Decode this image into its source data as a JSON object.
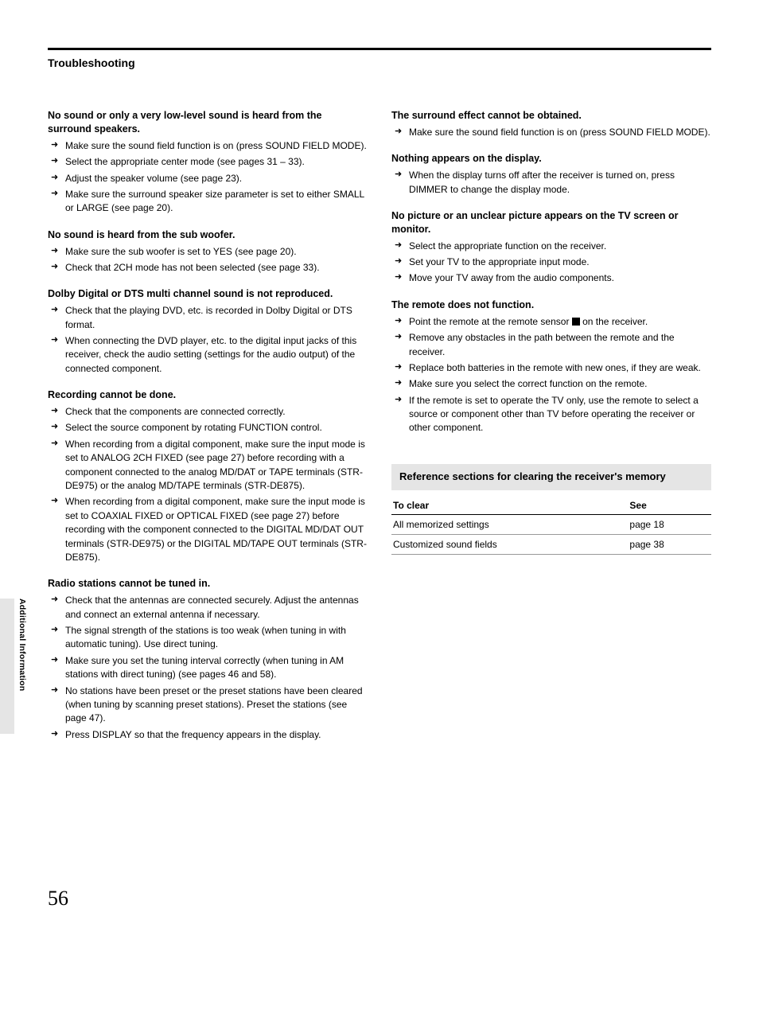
{
  "section_title": "Troubleshooting",
  "side_label": "Additional Information",
  "page_number": "56",
  "left": {
    "g1": {
      "head": "No sound or only a very low-level sound is heard from the surround speakers.",
      "items": [
        "Make sure the sound field function is on (press SOUND FIELD MODE).",
        "Select the appropriate center mode (see pages 31 – 33).",
        "Adjust the speaker volume (see page 23).",
        "Make sure the surround speaker size parameter is set to either SMALL or LARGE (see page 20)."
      ]
    },
    "g2": {
      "head": "No sound is heard from the sub woofer.",
      "items": [
        "Make sure the sub woofer is set to YES (see page 20).",
        "Check that 2CH mode has not been selected (see page 33)."
      ]
    },
    "g3": {
      "head": "Dolby Digital or DTS multi channel sound is not reproduced.",
      "items": [
        "Check that the playing DVD, etc. is recorded in Dolby Digital or DTS format.",
        "When connecting the DVD player, etc. to the digital input jacks of this receiver, check the audio setting (settings for the audio output) of the connected component."
      ]
    },
    "g4": {
      "head": "Recording cannot be done.",
      "items": [
        "Check that the components are connected correctly.",
        "Select the source component by rotating FUNCTION control.",
        "When recording from a digital component, make sure the input mode is set to ANALOG 2CH FIXED (see page 27) before recording with a component connected to the analog MD/DAT or TAPE terminals (STR-DE975) or the analog MD/TAPE terminals (STR-DE875).",
        "When recording from a digital component, make sure the input mode is set to COAXIAL FIXED or OPTICAL FIXED (see page 27) before recording with the component connected to the DIGITAL MD/DAT OUT terminals (STR-DE975) or the DIGITAL MD/TAPE OUT terminals (STR-DE875)."
      ]
    },
    "g5": {
      "head": "Radio stations cannot be tuned in.",
      "items": [
        "Check that the antennas are connected securely. Adjust the antennas and connect an external antenna if necessary.",
        "The signal strength of the stations is too weak (when tuning in with automatic tuning). Use direct tuning.",
        "Make sure you set the tuning interval correctly (when tuning in AM stations with direct tuning) (see pages 46 and 58).",
        "No stations have been preset or the preset stations have been cleared (when tuning by scanning preset stations). Preset the stations (see page 47).",
        "Press DISPLAY so that the frequency appears in the display."
      ]
    }
  },
  "right": {
    "g1": {
      "head": "The surround effect cannot be obtained.",
      "items": [
        "Make sure the sound field function is on (press SOUND FIELD MODE)."
      ]
    },
    "g2": {
      "head": "Nothing appears on the display.",
      "items": [
        "When the display turns off after the receiver is turned on, press DIMMER to change the display mode."
      ]
    },
    "g3": {
      "head": "No picture or an unclear picture appears on the TV screen or monitor.",
      "items": [
        "Select the appropriate function on the receiver.",
        "Set your TV to the appropriate input mode.",
        "Move your TV away from the audio components."
      ]
    },
    "g4": {
      "head": "The remote does not function.",
      "items_pre": "Point the remote at the remote sensor ",
      "items_post": " on the receiver.",
      "items_rest": [
        "Remove any obstacles in the path between the remote and the receiver.",
        "Replace both batteries in the remote with new ones, if they are weak.",
        "Make sure you select the correct function on the remote.",
        "If the remote is set to operate the TV only, use the remote to select a source or component other than TV before operating the receiver or other component."
      ]
    },
    "ref_title": "Reference sections for clearing the receiver's memory",
    "table": {
      "h1": "To clear",
      "h2": "See",
      "r1c1": "All memorized settings",
      "r1c2": "page 18",
      "r2c1": "Customized sound fields",
      "r2c2": "page 38"
    }
  }
}
